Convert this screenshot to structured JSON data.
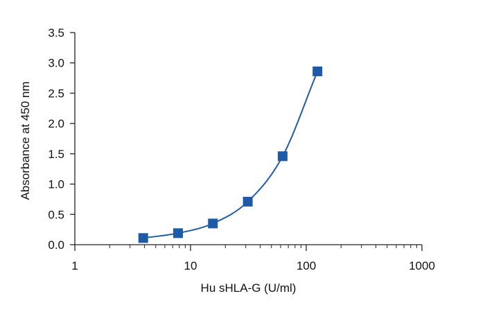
{
  "chart_data": {
    "type": "scatter",
    "title": "",
    "xlabel": "Hu sHLA-G (U/ml)",
    "ylabel": "Absorbance at 450 nm",
    "x_scale": "log",
    "xlim": [
      1,
      1000
    ],
    "ylim": [
      0,
      3.5
    ],
    "x_ticks": [
      1,
      10,
      100,
      1000
    ],
    "x_tick_labels": [
      "1",
      "10",
      "100",
      "1000"
    ],
    "y_ticks": [
      0,
      0.5,
      1,
      1.5,
      2,
      2.5,
      3,
      3.5
    ],
    "y_tick_labels": [
      "0.0",
      "0.5",
      "1.0",
      "1.5",
      "2.0",
      "2.5",
      "3.0",
      "3.5"
    ],
    "grid": false,
    "legend": "none",
    "series": [
      {
        "x": [
          3.9,
          7.8,
          15.6,
          31.25,
          62.5,
          125
        ],
        "y": [
          0.11,
          0.19,
          0.35,
          0.71,
          1.46,
          2.86
        ],
        "color": "#1f5aa6",
        "marker": "square",
        "fit_curve": true
      }
    ]
  }
}
